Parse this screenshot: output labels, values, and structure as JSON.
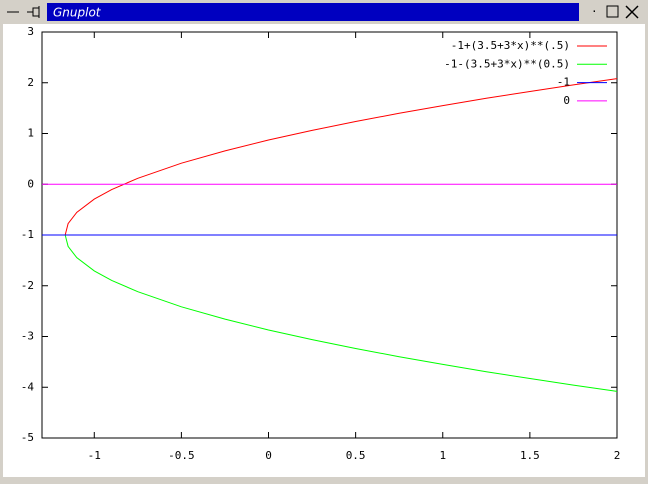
{
  "window": {
    "title": "Gnuplot"
  },
  "chart_data": {
    "type": "line",
    "xlim": [
      -1.3,
      2
    ],
    "ylim": [
      -5,
      3
    ],
    "xticks": [
      -1,
      -0.5,
      0,
      0.5,
      1,
      1.5,
      2
    ],
    "yticks": [
      -5,
      -4,
      -3,
      -2,
      -1,
      0,
      1,
      2,
      3
    ],
    "legend": "top-right",
    "series": [
      {
        "name": "-1+(3.5+3*x)**(.5)",
        "color": "#ff0000",
        "x": [
          -1.1667,
          -1.15,
          -1.1,
          -1,
          -0.9,
          -0.75,
          -0.5,
          -0.25,
          0,
          0.25,
          0.5,
          0.75,
          1,
          1.25,
          1.5,
          1.75,
          2
        ],
        "values": [
          -1,
          -0.776,
          -0.553,
          -0.293,
          -0.106,
          0.118,
          0.414,
          0.658,
          0.871,
          1.062,
          1.236,
          1.398,
          1.55,
          1.693,
          1.828,
          1.958,
          2.082
        ]
      },
      {
        "name": "-1-(3.5+3*x)**(0.5)",
        "color": "#00ff00",
        "x": [
          -1.1667,
          -1.15,
          -1.1,
          -1,
          -0.9,
          -0.75,
          -0.5,
          -0.25,
          0,
          0.25,
          0.5,
          0.75,
          1,
          1.25,
          1.5,
          1.75,
          2
        ],
        "values": [
          -1,
          -1.224,
          -1.447,
          -1.707,
          -1.894,
          -2.118,
          -2.414,
          -2.658,
          -2.871,
          -3.062,
          -3.236,
          -3.398,
          -3.55,
          -3.693,
          -3.828,
          -3.958,
          -4.082
        ]
      },
      {
        "name": "-1",
        "color": "#0000ff",
        "x": [
          -1.3,
          2
        ],
        "values": [
          -1,
          -1
        ]
      },
      {
        "name": "0",
        "color": "#ff00ff",
        "x": [
          -1.3,
          2
        ],
        "values": [
          0,
          0
        ]
      }
    ]
  }
}
